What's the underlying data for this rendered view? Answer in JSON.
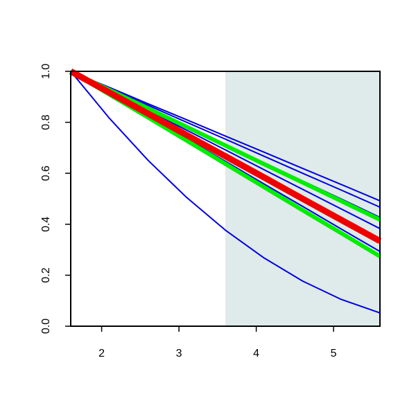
{
  "chart_data": {
    "type": "line",
    "x": [
      1.6,
      2.1,
      2.6,
      3.1,
      3.6,
      4.1,
      4.6,
      5.1,
      5.6
    ],
    "series": [
      {
        "color": "#0000dd",
        "line_width": 2,
        "values": [
          1,
          0.937,
          0.873,
          0.81,
          0.746,
          0.683,
          0.619,
          0.556,
          0.492
        ]
      },
      {
        "color": "#0000dd",
        "line_width": 2,
        "values": [
          1,
          0.933,
          0.867,
          0.8,
          0.734,
          0.667,
          0.6,
          0.534,
          0.467
        ]
      },
      {
        "color": "#0000dd",
        "line_width": 2,
        "values": [
          1,
          0.928,
          0.857,
          0.785,
          0.714,
          0.642,
          0.57,
          0.499,
          0.427
        ]
      },
      {
        "color": "#0000dd",
        "line_width": 2,
        "values": [
          1,
          0.923,
          0.846,
          0.769,
          0.692,
          0.614,
          0.537,
          0.46,
          0.383
        ]
      },
      {
        "color": "#0000dd",
        "line_width": 2,
        "values": [
          1,
          0.912,
          0.823,
          0.735,
          0.647,
          0.558,
          0.47,
          0.381,
          0.293
        ]
      },
      {
        "color": "#0000dd",
        "line_width": 2,
        "values": [
          1,
          0.816,
          0.651,
          0.505,
          0.377,
          0.268,
          0.177,
          0.105,
          0.052
        ]
      },
      {
        "color": "#00ee00",
        "line_width": 6,
        "values": [
          1,
          0.927,
          0.855,
          0.782,
          0.709,
          0.636,
          0.564,
          0.491,
          0.418
        ]
      },
      {
        "color": "#00ee00",
        "line_width": 6,
        "values": [
          1,
          0.909,
          0.819,
          0.728,
          0.637,
          0.546,
          0.455,
          0.365,
          0.274
        ]
      },
      {
        "color": "#ee0000",
        "line_width": 9,
        "values": [
          1,
          0.917,
          0.834,
          0.75,
          0.667,
          0.584,
          0.5,
          0.417,
          0.334
        ]
      }
    ],
    "shade": [
      3.6,
      5.6
    ],
    "shade_color": "#dfeaea",
    "xlim": [
      1.6,
      5.6
    ],
    "ylim": [
      0,
      1
    ],
    "xticks": [
      2,
      3,
      4,
      5
    ],
    "yticks": [
      {
        "value": 0,
        "label": "0.0"
      },
      0.2,
      0.4,
      0.6,
      0.8,
      {
        "value": 1,
        "label": "1.0"
      }
    ]
  }
}
